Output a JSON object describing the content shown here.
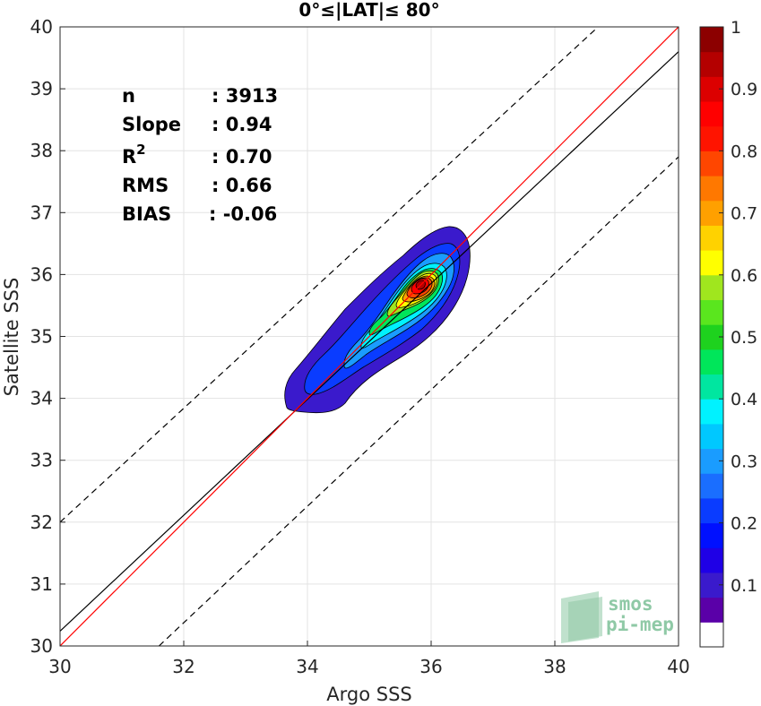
{
  "chart_data": {
    "type": "contour",
    "title": "0°≤|LAT|≤ 80°",
    "xlabel": "Argo SSS",
    "ylabel": "Satellite SSS",
    "xlim": [
      30,
      40
    ],
    "ylim": [
      30,
      40
    ],
    "xticks": [
      "30",
      "32",
      "34",
      "36",
      "38",
      "40"
    ],
    "yticks": [
      "30",
      "31",
      "32",
      "33",
      "34",
      "35",
      "36",
      "37",
      "38",
      "39",
      "40"
    ],
    "grid": true,
    "stats": [
      {
        "label": "n",
        "value": ": 3913"
      },
      {
        "label": "Slope",
        "value": ": 0.94"
      },
      {
        "label": "R",
        "sup": "2",
        "value": ": 0.70"
      },
      {
        "label": "RMS",
        "value": ": 0.66"
      },
      {
        "label": "BIAS",
        "value": ": -0.06"
      }
    ],
    "lines": {
      "one_to_one": {
        "color": "#ff0000",
        "x": [
          30,
          40
        ],
        "y": [
          30,
          40
        ]
      },
      "regression": {
        "color": "#000000",
        "x": [
          30,
          40
        ],
        "y": [
          30.24,
          39.6
        ]
      },
      "upper_dashed": {
        "color": "#000000",
        "x": [
          30,
          38.7
        ],
        "y": [
          32,
          40
        ]
      },
      "lower_dashed": {
        "color": "#000000",
        "x": [
          31.6,
          40
        ],
        "y": [
          30,
          37.9
        ]
      }
    },
    "density_peak": {
      "x": 35.85,
      "y": 35.85
    },
    "contour_levels": [
      0.05,
      0.1,
      0.2,
      0.3,
      0.4,
      0.5,
      0.6,
      0.7,
      0.8,
      0.9
    ],
    "colorbar": {
      "range": [
        0,
        1
      ],
      "ticks": [
        "0.1",
        "0.2",
        "0.3",
        "0.4",
        "0.5",
        "0.6",
        "0.7",
        "0.8",
        "0.9",
        "1"
      ],
      "colors": [
        "#ffffff",
        "#5a00a8",
        "#3a1acc",
        "#1f00e6",
        "#0010ff",
        "#0a3cff",
        "#1a6eff",
        "#1a9cff",
        "#00c8ff",
        "#00f2ff",
        "#00e6a0",
        "#00e65a",
        "#1ed21e",
        "#5ae61e",
        "#a0e61e",
        "#ffff00",
        "#ffd200",
        "#ffa000",
        "#ff7800",
        "#ff4600",
        "#ff1400",
        "#ff0000",
        "#dc0000",
        "#b40000",
        "#8c0000"
      ]
    },
    "logo": {
      "line1": "smos",
      "line2": "pi-mep"
    }
  }
}
